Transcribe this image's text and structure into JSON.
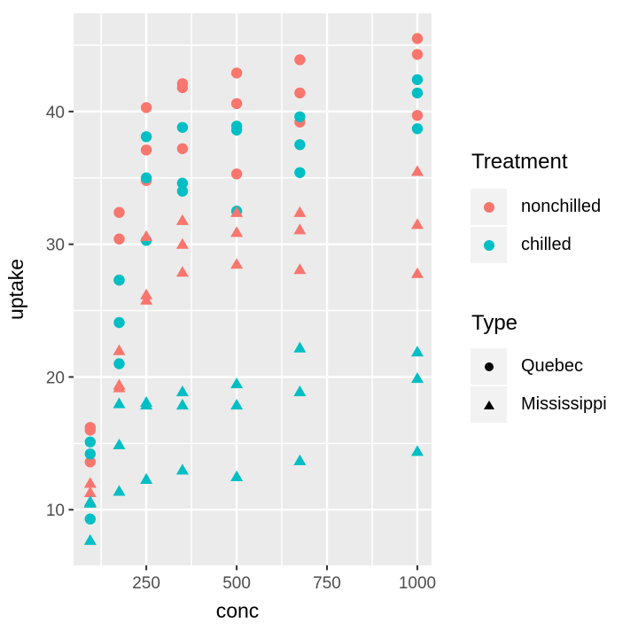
{
  "colors": {
    "background": "#FFFFFF",
    "panel_bg": "#EBEBEB",
    "grid": "#FFFFFF",
    "axis_text": "#4D4D4D",
    "tick": "#333333",
    "axis_title": "#000000",
    "legend_key_bg": "#F2F2F2",
    "legend_shape": "#000000",
    "nonchilled": "#F8766D",
    "chilled": "#00BFC4"
  },
  "chart_data": {
    "type": "scatter",
    "title": "",
    "xlabel": "conc",
    "ylabel": "uptake",
    "x_ticks": [
      250,
      500,
      750,
      1000
    ],
    "y_ticks": [
      10,
      20,
      30,
      40
    ],
    "x_minor": [
      125,
      375,
      625,
      875
    ],
    "y_minor": [
      15,
      25,
      35,
      45
    ],
    "xlim": [
      48.8,
      1039.2
    ],
    "ylim": [
      5.81,
      47.4
    ],
    "grid": true,
    "legend_position": "right",
    "series": [
      {
        "name": "Quebec nonchilled",
        "type": "Quebec",
        "treatment": "nonchilled",
        "shape": "circle",
        "color": "#F8766D",
        "x": [
          95,
          175,
          250,
          350,
          500,
          675,
          1000,
          95,
          175,
          250,
          350,
          500,
          675,
          1000,
          95,
          175,
          250,
          350,
          500,
          675,
          1000
        ],
        "y": [
          16.0,
          30.4,
          34.8,
          37.2,
          35.3,
          39.2,
          39.7,
          13.6,
          27.3,
          37.1,
          41.8,
          40.6,
          41.4,
          44.3,
          16.2,
          32.4,
          40.3,
          42.1,
          42.9,
          43.9,
          45.5
        ]
      },
      {
        "name": "Quebec chilled",
        "type": "Quebec",
        "treatment": "chilled",
        "shape": "circle",
        "color": "#00BFC4",
        "x": [
          95,
          175,
          250,
          350,
          500,
          675,
          1000,
          95,
          175,
          250,
          350,
          500,
          675,
          1000,
          95,
          175,
          250,
          350,
          500,
          675,
          1000
        ],
        "y": [
          14.2,
          24.1,
          30.3,
          34.6,
          32.5,
          35.4,
          38.7,
          9.3,
          27.3,
          35.0,
          38.8,
          38.6,
          37.5,
          42.4,
          15.1,
          21.0,
          38.1,
          34.0,
          38.9,
          39.6,
          41.4
        ]
      },
      {
        "name": "Mississippi nonchilled",
        "type": "Mississippi",
        "treatment": "nonchilled",
        "shape": "triangle",
        "color": "#F8766D",
        "x": [
          95,
          175,
          250,
          350,
          500,
          675,
          1000,
          95,
          175,
          250,
          350,
          500,
          675,
          1000,
          95,
          175,
          250,
          350,
          500,
          675,
          1000
        ],
        "y": [
          10.6,
          19.2,
          26.2,
          30.0,
          30.9,
          32.4,
          35.5,
          12.0,
          22.0,
          30.6,
          31.8,
          32.4,
          31.1,
          31.5,
          11.3,
          19.4,
          25.8,
          27.9,
          28.5,
          28.1,
          27.8
        ]
      },
      {
        "name": "Mississippi chilled",
        "type": "Mississippi",
        "treatment": "chilled",
        "shape": "triangle",
        "color": "#00BFC4",
        "x": [
          95,
          175,
          250,
          350,
          500,
          675,
          1000,
          95,
          175,
          250,
          350,
          500,
          675,
          1000,
          95,
          175,
          250,
          350,
          500,
          675,
          1000
        ],
        "y": [
          10.5,
          14.9,
          18.1,
          18.9,
          19.5,
          22.2,
          21.9,
          7.7,
          11.4,
          12.3,
          13.0,
          12.5,
          13.7,
          14.4,
          10.6,
          18.0,
          17.9,
          17.9,
          17.9,
          18.9,
          19.9
        ]
      }
    ],
    "legend": {
      "treatment": {
        "title": "Treatment",
        "items": [
          {
            "label": "nonchilled",
            "color": "#F8766D"
          },
          {
            "label": "chilled",
            "color": "#00BFC4"
          }
        ]
      },
      "type": {
        "title": "Type",
        "items": [
          {
            "label": "Quebec",
            "shape": "circle"
          },
          {
            "label": "Mississippi",
            "shape": "triangle"
          }
        ]
      }
    }
  }
}
